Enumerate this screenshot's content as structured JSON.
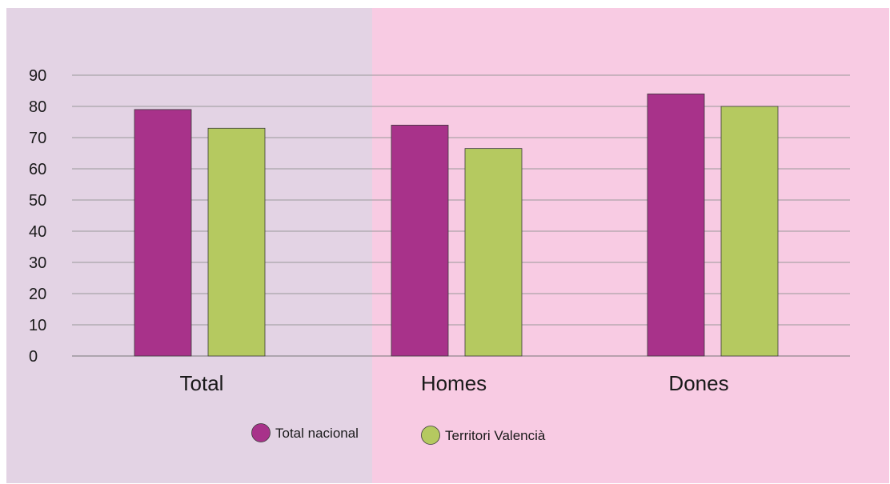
{
  "chart_data": {
    "type": "bar",
    "categories": [
      "Total",
      "Homes",
      "Dones"
    ],
    "series": [
      {
        "name": "Total nacional",
        "values": [
          79,
          74,
          84
        ],
        "color": "#a8328a"
      },
      {
        "name": "Territori Valencià",
        "values": [
          73,
          66.5,
          80
        ],
        "color": "#b5c960"
      }
    ],
    "ylim": [
      0,
      90
    ],
    "yticks": [
      0,
      10,
      20,
      30,
      40,
      50,
      60,
      70,
      80,
      90
    ],
    "grid": true,
    "legend": "bottom-center",
    "background_left": "#e3d3e4",
    "background_right": "#f8cbe3"
  }
}
